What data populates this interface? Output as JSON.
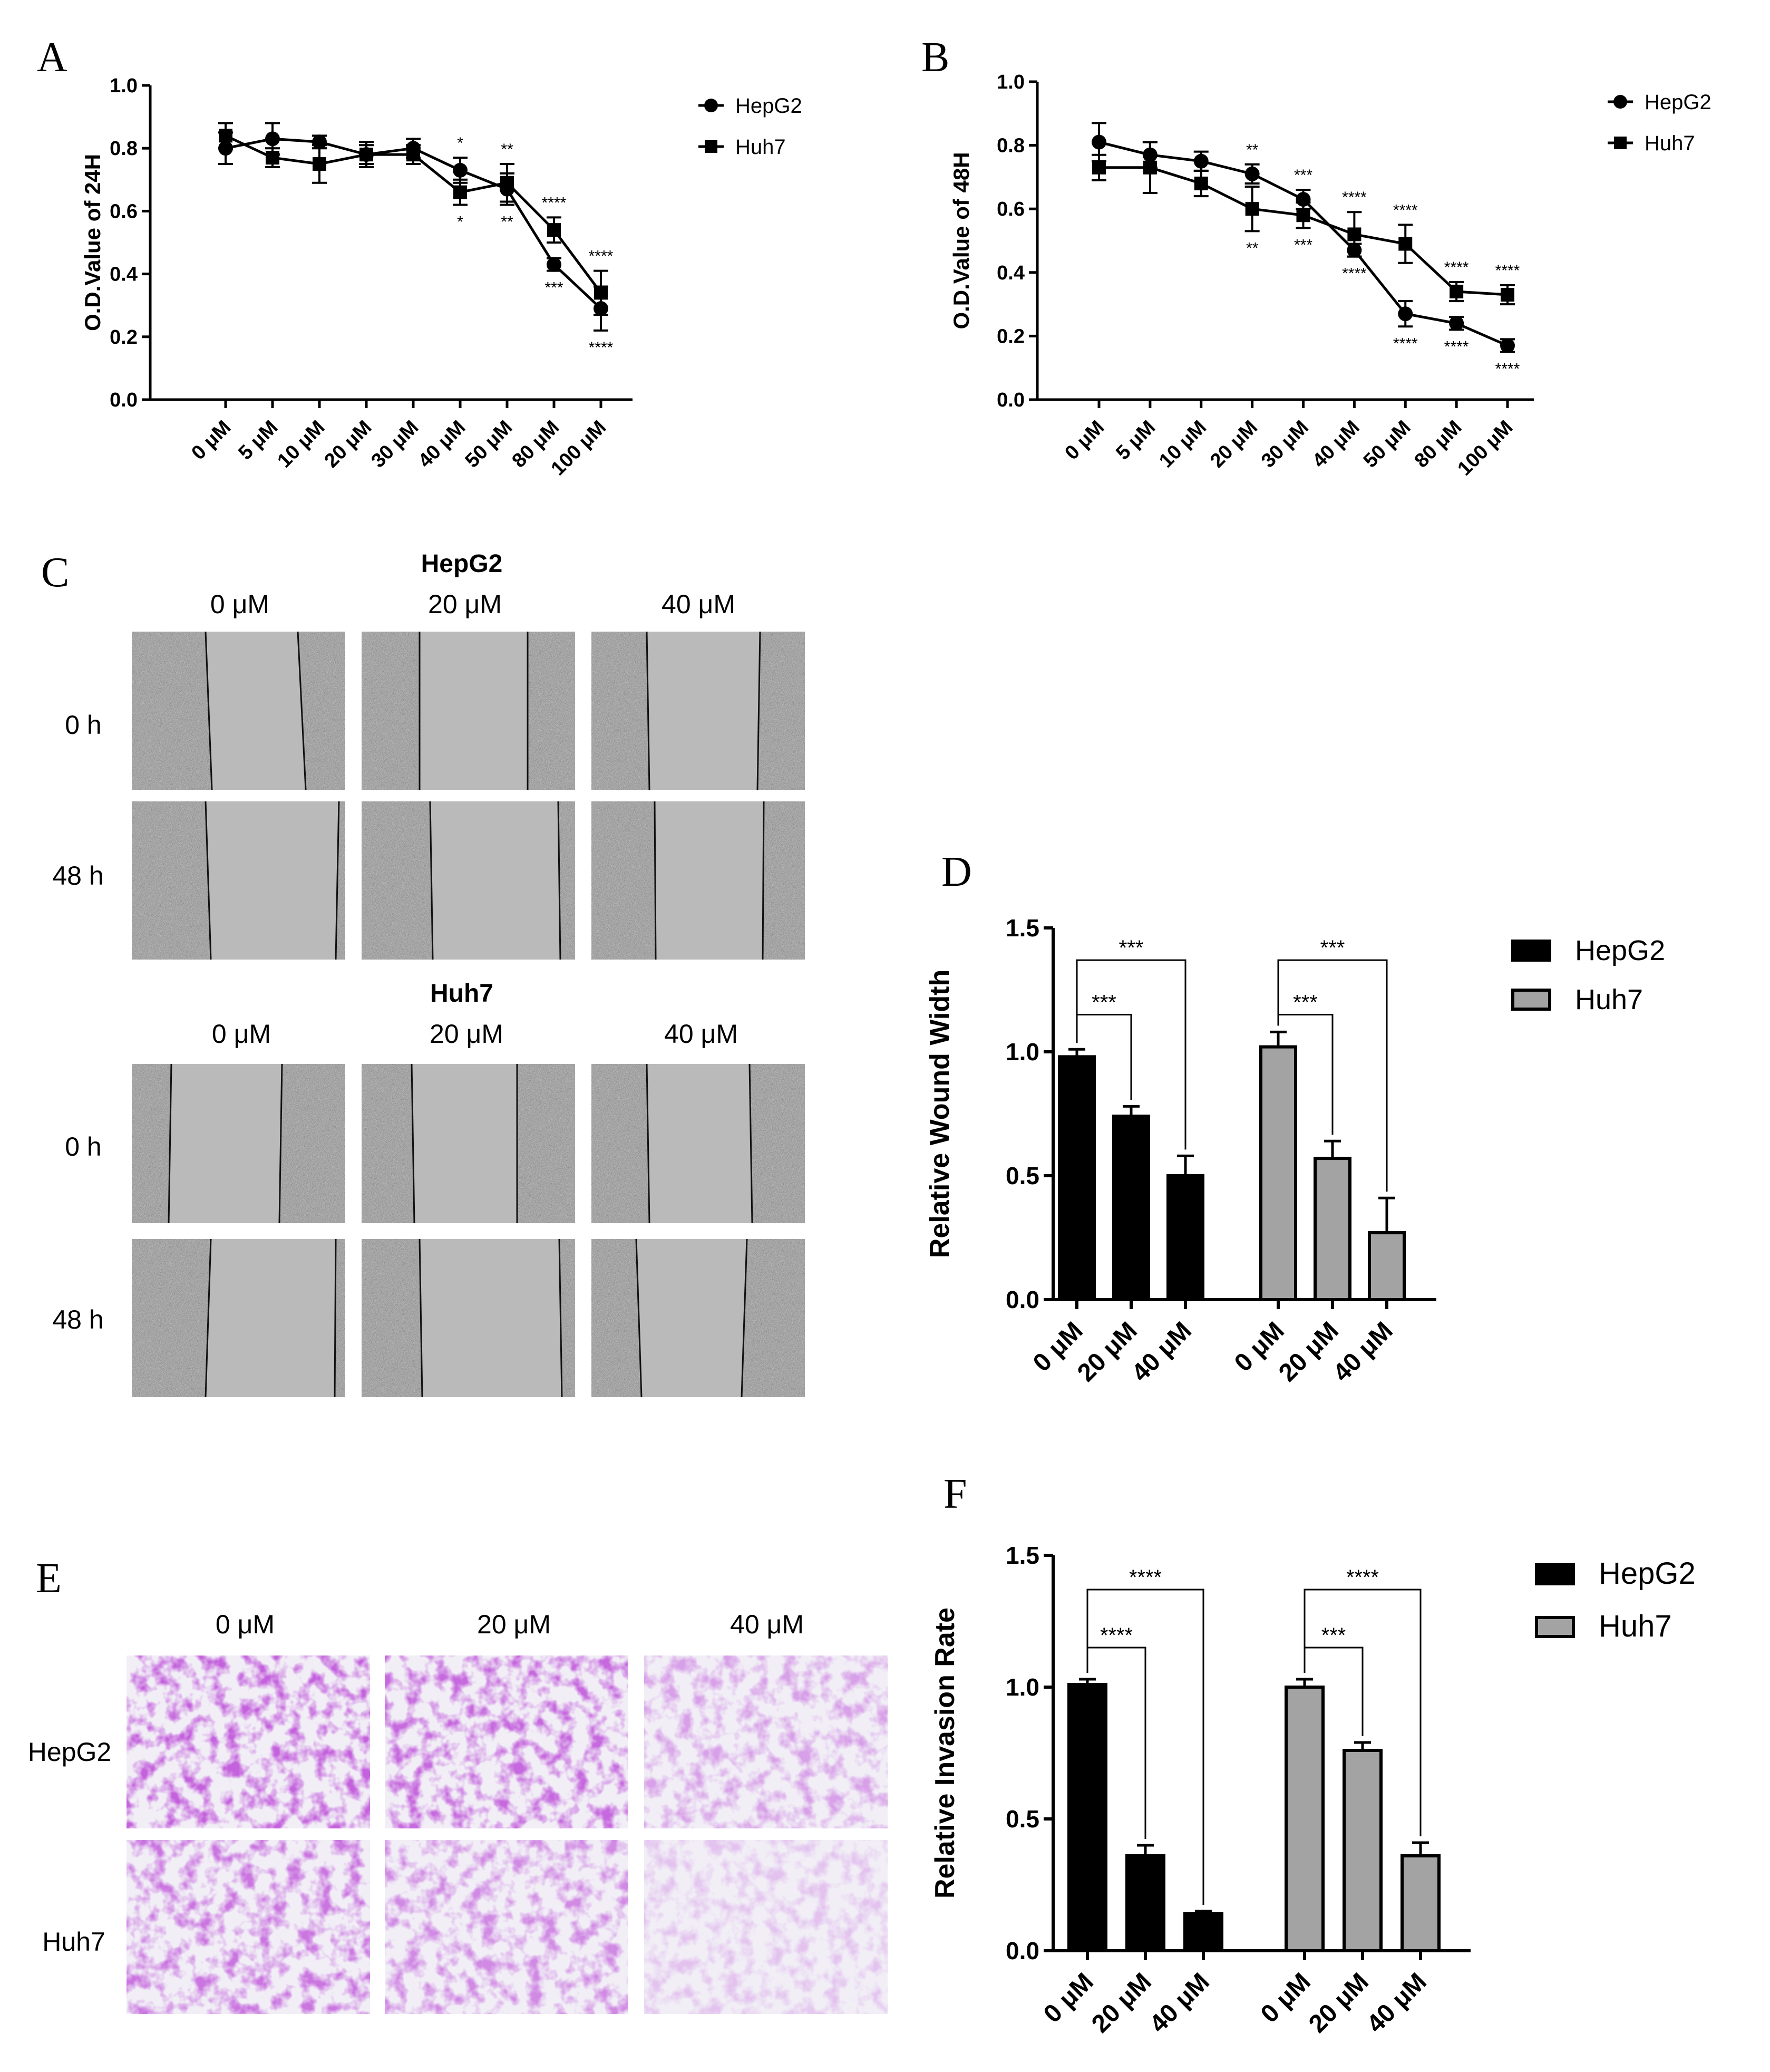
{
  "colors": {
    "hepg2": "#000000",
    "huh7": "#a3a3a3",
    "wound_gray": "#b6b6b6",
    "crystal": "#8a2bb8",
    "paper": "#ffffff"
  },
  "panel_labels": {
    "a": "A",
    "b": "B",
    "c": "C",
    "d": "D",
    "e": "E",
    "f": "F"
  },
  "chart_data": [
    {
      "id": "A",
      "type": "line",
      "categories": [
        "0 μM",
        "5 μM",
        "10 μM",
        "20 μM",
        "30 μM",
        "40 μM",
        "50 μM",
        "80 μM",
        "100 μM"
      ],
      "ylabel": "O.D.Value of 24H",
      "ylim": [
        0,
        1.0
      ],
      "yticks": [
        "0.0",
        "0.2",
        "0.4",
        "0.6",
        "0.8",
        "1.0"
      ],
      "legend": {
        "position": "top-right",
        "entries": [
          "HepG2",
          "Huh7"
        ]
      },
      "series": [
        {
          "name": "HepG2",
          "marker": "circle",
          "values": [
            0.8,
            0.83,
            0.82,
            0.78,
            0.8,
            0.73,
            0.67,
            0.43,
            0.29
          ],
          "errors": [
            0.05,
            0.05,
            0.02,
            0.04,
            0.03,
            0.04,
            0.05,
            0.02,
            0.07
          ],
          "sig": [
            "",
            "",
            "",
            "",
            "",
            "*",
            "**",
            "***",
            "****"
          ]
        },
        {
          "name": "Huh7",
          "marker": "square",
          "values": [
            0.84,
            0.77,
            0.75,
            0.78,
            0.78,
            0.66,
            0.69,
            0.54,
            0.34
          ],
          "errors": [
            0.04,
            0.03,
            0.06,
            0.03,
            0.03,
            0.04,
            0.06,
            0.04,
            0.07
          ],
          "sig": [
            "",
            "",
            "",
            "",
            "",
            "*",
            "**",
            "****",
            "****"
          ]
        }
      ]
    },
    {
      "id": "B",
      "type": "line",
      "categories": [
        "0 μM",
        "5 μM",
        "10 μM",
        "20 μM",
        "30 μM",
        "40 μM",
        "50 μM",
        "80 μM",
        "100 μM"
      ],
      "ylabel": "O.D.Value of 48H",
      "ylim": [
        0,
        1.0
      ],
      "yticks": [
        "0.0",
        "0.2",
        "0.4",
        "0.6",
        "0.8",
        "1.0"
      ],
      "legend": {
        "position": "top-right",
        "entries": [
          "HepG2",
          "Huh7"
        ]
      },
      "series": [
        {
          "name": "HepG2",
          "marker": "circle",
          "values": [
            0.81,
            0.77,
            0.75,
            0.71,
            0.63,
            0.47,
            0.27,
            0.24,
            0.17
          ],
          "errors": [
            0.06,
            0.04,
            0.03,
            0.03,
            0.03,
            0.02,
            0.04,
            0.02,
            0.02
          ],
          "sig": [
            "",
            "",
            "",
            "**",
            "***",
            "****",
            "****",
            "****",
            "****"
          ]
        },
        {
          "name": "Huh7",
          "marker": "square",
          "values": [
            0.73,
            0.73,
            0.68,
            0.6,
            0.58,
            0.52,
            0.49,
            0.34,
            0.33
          ],
          "errors": [
            0.04,
            0.08,
            0.04,
            0.07,
            0.04,
            0.07,
            0.06,
            0.03,
            0.03
          ],
          "sig": [
            "",
            "",
            "",
            "**",
            "***",
            "****",
            "****",
            "****",
            "****"
          ]
        }
      ]
    },
    {
      "id": "D",
      "type": "bar",
      "groups": [
        "HepG2",
        "Huh7"
      ],
      "categories": [
        "0 μM",
        "20 μM",
        "40 μM"
      ],
      "ylabel": "Relative Wound Width",
      "ylim": [
        0,
        1.5
      ],
      "yticks": [
        "0.0",
        "0.5",
        "1.0",
        "1.5"
      ],
      "legend": {
        "position": "top-right",
        "entries": [
          "HepG2",
          "Huh7"
        ]
      },
      "series": [
        {
          "name": "HepG2",
          "values": [
            0.98,
            0.74,
            0.5
          ],
          "errors": [
            0.03,
            0.04,
            0.08
          ]
        },
        {
          "name": "Huh7",
          "values": [
            1.02,
            0.57,
            0.27
          ],
          "errors": [
            0.06,
            0.07,
            0.14
          ]
        }
      ],
      "brackets": [
        {
          "group": 0,
          "from": 0,
          "to": 1,
          "label": "***"
        },
        {
          "group": 0,
          "from": 0,
          "to": 2,
          "label": "***"
        },
        {
          "group": 1,
          "from": 0,
          "to": 1,
          "label": "***"
        },
        {
          "group": 1,
          "from": 0,
          "to": 2,
          "label": "***"
        }
      ]
    },
    {
      "id": "F",
      "type": "bar",
      "groups": [
        "HepG2",
        "Huh7"
      ],
      "categories": [
        "0 μM",
        "20 μM",
        "40 μM"
      ],
      "ylabel": "Relative Invasion Rate",
      "ylim": [
        0,
        1.5
      ],
      "yticks": [
        "0.0",
        "0.5",
        "1.0",
        "1.5"
      ],
      "legend": {
        "position": "top-right",
        "entries": [
          "HepG2",
          "Huh7"
        ]
      },
      "series": [
        {
          "name": "HepG2",
          "values": [
            1.01,
            0.36,
            0.14
          ],
          "errors": [
            0.02,
            0.04,
            0.01
          ]
        },
        {
          "name": "Huh7",
          "values": [
            1.0,
            0.76,
            0.36
          ],
          "errors": [
            0.03,
            0.03,
            0.05
          ]
        }
      ],
      "brackets": [
        {
          "group": 0,
          "from": 0,
          "to": 1,
          "label": "****"
        },
        {
          "group": 0,
          "from": 0,
          "to": 2,
          "label": "****"
        },
        {
          "group": 1,
          "from": 0,
          "to": 1,
          "label": "***"
        },
        {
          "group": 1,
          "from": 0,
          "to": 2,
          "label": "****"
        }
      ]
    }
  ],
  "wound_panel": {
    "sections": [
      {
        "title": "HepG2",
        "columns": [
          "0 μM",
          "20 μM",
          "40 μM"
        ],
        "rows": [
          "0 h",
          "48 h"
        ]
      },
      {
        "title": "Huh7",
        "columns": [
          "0 μM",
          "20 μM",
          "40 μM"
        ],
        "rows": [
          "0 h",
          "48 h"
        ]
      }
    ]
  },
  "invasion_panel": {
    "columns": [
      "0 μM",
      "20 μM",
      "40 μM"
    ],
    "rows": [
      "HepG2",
      "Huh7"
    ]
  }
}
